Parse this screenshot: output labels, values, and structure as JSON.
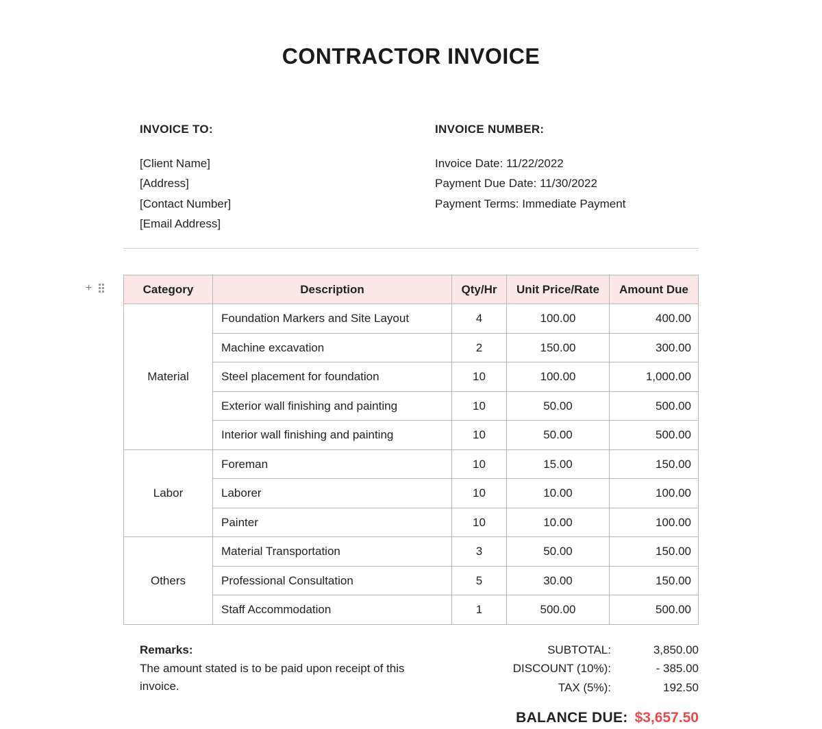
{
  "title": "CONTRACTOR INVOICE",
  "invoice_to": {
    "label": "INVOICE TO:",
    "client_name": "[Client Name]",
    "address": "[Address]",
    "contact": "[Contact Number]",
    "email": "[Email Address]"
  },
  "invoice_meta": {
    "label": "INVOICE NUMBER:",
    "date": "Invoice Date: 11/22/2022",
    "due": "Payment Due Date: 11/30/2022",
    "terms": "Payment Terms: Immediate Payment"
  },
  "table": {
    "header_bg": "#fbe7e7",
    "border_color": "#b9b9b9",
    "columns": [
      "Category",
      "Description",
      "Qty/Hr",
      "Unit Price/Rate",
      "Amount Due"
    ],
    "groups": [
      {
        "category": "Material",
        "rows": [
          {
            "desc": "Foundation Markers and  Site Layout",
            "qty": "4",
            "unit": "100.00",
            "amt": "400.00"
          },
          {
            "desc": "Machine excavation",
            "qty": "2",
            "unit": "150.00",
            "amt": "300.00"
          },
          {
            "desc": "Steel placement for foundation",
            "qty": "10",
            "unit": "100.00",
            "amt": "1,000.00"
          },
          {
            "desc": "Exterior wall finishing and painting",
            "qty": "10",
            "unit": "50.00",
            "amt": "500.00"
          },
          {
            "desc": "Interior wall finishing and painting",
            "qty": "10",
            "unit": "50.00",
            "amt": "500.00"
          }
        ]
      },
      {
        "category": "Labor",
        "rows": [
          {
            "desc": "Foreman",
            "qty": "10",
            "unit": "15.00",
            "amt": "150.00"
          },
          {
            "desc": "Laborer",
            "qty": "10",
            "unit": "10.00",
            "amt": "100.00"
          },
          {
            "desc": "Painter",
            "qty": "10",
            "unit": "10.00",
            "amt": "100.00"
          }
        ]
      },
      {
        "category": "Others",
        "rows": [
          {
            "desc": "Material Transportation",
            "qty": "3",
            "unit": "50.00",
            "amt": "150.00"
          },
          {
            "desc": "Professional Consultation",
            "qty": "5",
            "unit": "30.00",
            "amt": "150.00"
          },
          {
            "desc": "Staff Accommodation",
            "qty": "1",
            "unit": "500.00",
            "amt": "500.00"
          }
        ]
      }
    ]
  },
  "remarks": {
    "label": "Remarks:",
    "text": "The amount stated is to be paid upon receipt of this invoice."
  },
  "totals": {
    "subtotal_label": "SUBTOTAL:",
    "subtotal": "3,850.00",
    "discount_label": "DISCOUNT (10%):",
    "discount": "- 385.00",
    "tax_label": "TAX (5%):",
    "tax": "192.50",
    "balance_label": "BALANCE DUE:",
    "balance": "$3,657.50",
    "balance_color": "#e54b4b"
  }
}
